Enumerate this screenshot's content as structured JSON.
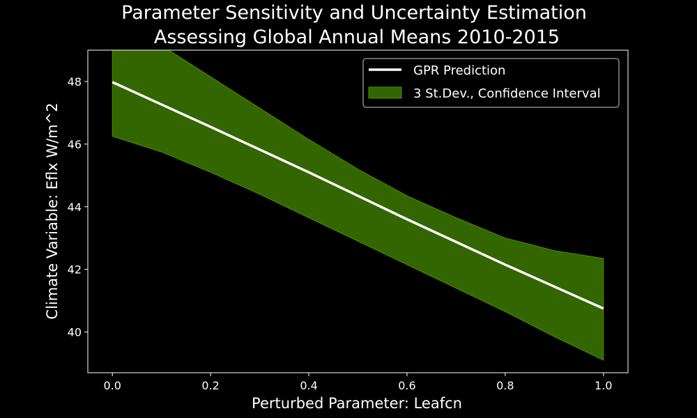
{
  "title_line1": "Parameter Sensitivity and Uncertainty Estimation",
  "title_line2": "Assessing Global Annual Means 2010-2015",
  "chart_data": {
    "type": "line",
    "xlabel": "Perturbed Parameter: Leafcn",
    "ylabel": "Climate Variable: Eflx W/m^2",
    "xlim": [
      -0.05,
      1.05
    ],
    "ylim": [
      38.7,
      49.0
    ],
    "x_ticks": [
      "0.0",
      "0.2",
      "0.4",
      "0.6",
      "0.8",
      "1.0"
    ],
    "y_ticks": [
      "40",
      "42",
      "44",
      "46",
      "48"
    ],
    "grid": false,
    "legend_position": "top-right",
    "background": "#000000",
    "series": [
      {
        "name": "GPR Prediction",
        "kind": "line",
        "color": "#ffffff",
        "x": [
          0.0,
          0.2,
          0.4,
          0.6,
          0.8,
          1.0
        ],
        "y": [
          47.98,
          46.55,
          45.1,
          43.6,
          42.15,
          40.75
        ]
      },
      {
        "name": "3 St.Dev., Confidence Interval",
        "kind": "band",
        "color": "#336600",
        "edge_color": "#4d8c00",
        "x": [
          0.0,
          0.1,
          0.2,
          0.3,
          0.4,
          0.5,
          0.6,
          0.7,
          0.8,
          0.9,
          1.0
        ],
        "lower": [
          46.25,
          45.75,
          45.1,
          44.4,
          43.65,
          42.9,
          42.15,
          41.4,
          40.65,
          39.85,
          39.1
        ],
        "upper": [
          49.7,
          49.15,
          48.15,
          47.15,
          46.15,
          45.2,
          44.35,
          43.65,
          43.0,
          42.6,
          42.35
        ]
      }
    ]
  }
}
